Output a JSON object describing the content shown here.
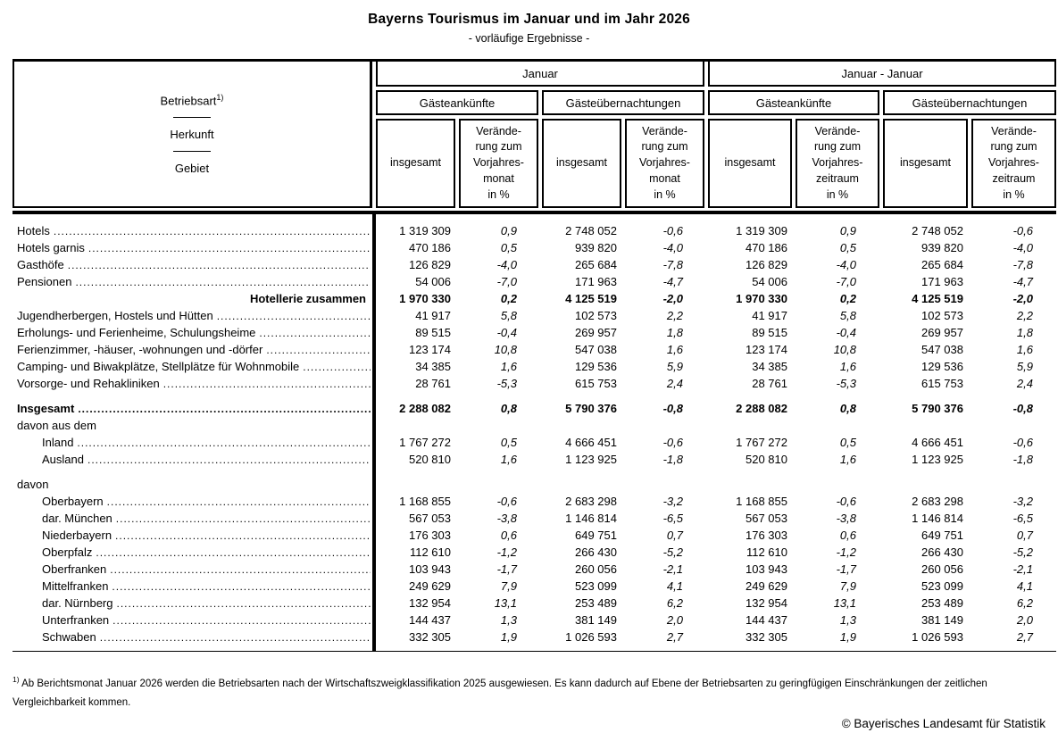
{
  "title": "Bayerns Tourismus im Januar und im Jahr 2026",
  "subtitle": "- vorläufige Ergebnisse -",
  "header": {
    "col_label_top": "Betriebsart",
    "col_label_footnote_marker": "1)",
    "col_label_mid": "Herkunft",
    "col_label_bottom": "Gebiet",
    "groups": [
      "Januar",
      "Januar - Januar"
    ],
    "subgroups": [
      "Gästeankünfte",
      "Gästeübernachtungen",
      "Gästeankünfte",
      "Gästeübernachtungen"
    ],
    "measures": [
      "insgesamt",
      "Verände-\nrung zum\nVorjahres-\nmonat\nin %",
      "insgesamt",
      "Verände-\nrung zum\nVorjahres-\nmonat\nin %",
      "insgesamt",
      "Verände-\nrung zum\nVorjahres-\nzeitraum\nin %",
      "insgesamt",
      "Verände-\nrung zum\nVorjahres-\nzeitraum\nin %"
    ]
  },
  "table": {
    "rows": [
      {
        "label": "Hotels",
        "type": "normal",
        "indent": 0,
        "bold": false,
        "gap_before": false,
        "values": [
          "1 319 309",
          "0,9",
          "2 748 052",
          "-0,6",
          "1 319 309",
          "0,9",
          "2 748 052",
          "-0,6"
        ]
      },
      {
        "label": "Hotels garnis",
        "type": "normal",
        "indent": 0,
        "bold": false,
        "gap_before": false,
        "values": [
          "470 186",
          "0,5",
          "939 820",
          "-4,0",
          "470 186",
          "0,5",
          "939 820",
          "-4,0"
        ]
      },
      {
        "label": "Gasthöfe",
        "type": "normal",
        "indent": 0,
        "bold": false,
        "gap_before": false,
        "values": [
          "126 829",
          "-4,0",
          "265 684",
          "-7,8",
          "126 829",
          "-4,0",
          "265 684",
          "-7,8"
        ]
      },
      {
        "label": "Pensionen",
        "type": "normal",
        "indent": 0,
        "bold": false,
        "gap_before": false,
        "values": [
          "54 006",
          "-7,0",
          "171 963",
          "-4,7",
          "54 006",
          "-7,0",
          "171 963",
          "-4,7"
        ]
      },
      {
        "label": "Hotellerie zusammen",
        "type": "summary",
        "indent": 0,
        "bold": true,
        "gap_before": false,
        "values": [
          "1 970 330",
          "0,2",
          "4 125 519",
          "-2,0",
          "1 970 330",
          "0,2",
          "4 125 519",
          "-2,0"
        ]
      },
      {
        "label": "Jugendherbergen, Hostels und Hütten",
        "type": "normal",
        "indent": 0,
        "bold": false,
        "gap_before": false,
        "values": [
          "41 917",
          "5,8",
          "102 573",
          "2,2",
          "41 917",
          "5,8",
          "102 573",
          "2,2"
        ]
      },
      {
        "label": "Erholungs- und Ferienheime, Schulungsheime",
        "type": "normal",
        "indent": 0,
        "bold": false,
        "gap_before": false,
        "values": [
          "89 515",
          "-0,4",
          "269 957",
          "1,8",
          "89 515",
          "-0,4",
          "269 957",
          "1,8"
        ]
      },
      {
        "label": "Ferienzimmer, -häuser, -wohnungen und -dörfer",
        "type": "normal",
        "indent": 0,
        "bold": false,
        "gap_before": false,
        "values": [
          "123 174",
          "10,8",
          "547 038",
          "1,6",
          "123 174",
          "10,8",
          "547 038",
          "1,6"
        ]
      },
      {
        "label": "Camping- und Biwakplätze, Stellplätze für Wohnmobile",
        "type": "normal",
        "indent": 0,
        "bold": false,
        "gap_before": false,
        "values": [
          "34 385",
          "1,6",
          "129 536",
          "5,9",
          "34 385",
          "1,6",
          "129 536",
          "5,9"
        ]
      },
      {
        "label": "Vorsorge- und Rehakliniken",
        "type": "normal",
        "indent": 0,
        "bold": false,
        "gap_before": false,
        "values": [
          "28 761",
          "-5,3",
          "615 753",
          "2,4",
          "28 761",
          "-5,3",
          "615 753",
          "2,4"
        ]
      },
      {
        "label": "Insgesamt",
        "type": "normal",
        "indent": 0,
        "bold": true,
        "gap_before": true,
        "values": [
          "2 288 082",
          "0,8",
          "5 790 376",
          "-0,8",
          "2 288 082",
          "0,8",
          "5 790 376",
          "-0,8"
        ]
      },
      {
        "label": "davon aus dem",
        "type": "section",
        "indent": 0,
        "bold": false,
        "gap_before": false,
        "values": []
      },
      {
        "label": "Inland",
        "type": "normal",
        "indent": 1,
        "bold": false,
        "gap_before": false,
        "values": [
          "1 767 272",
          "0,5",
          "4 666 451",
          "-0,6",
          "1 767 272",
          "0,5",
          "4 666 451",
          "-0,6"
        ]
      },
      {
        "label": "Ausland",
        "type": "normal",
        "indent": 1,
        "bold": false,
        "gap_before": false,
        "values": [
          "520 810",
          "1,6",
          "1 123 925",
          "-1,8",
          "520 810",
          "1,6",
          "1 123 925",
          "-1,8"
        ]
      },
      {
        "label": "davon",
        "type": "section",
        "indent": 0,
        "bold": false,
        "gap_before": true,
        "values": []
      },
      {
        "label": "Oberbayern",
        "type": "normal",
        "indent": 1,
        "bold": false,
        "gap_before": false,
        "values": [
          "1 168 855",
          "-0,6",
          "2 683 298",
          "-3,2",
          "1 168 855",
          "-0,6",
          "2 683 298",
          "-3,2"
        ]
      },
      {
        "label": "dar. München",
        "type": "normal",
        "indent": 1,
        "bold": false,
        "gap_before": false,
        "values": [
          "567 053",
          "-3,8",
          "1 146 814",
          "-6,5",
          "567 053",
          "-3,8",
          "1 146 814",
          "-6,5"
        ]
      },
      {
        "label": "Niederbayern",
        "type": "normal",
        "indent": 1,
        "bold": false,
        "gap_before": false,
        "values": [
          "176 303",
          "0,6",
          "649 751",
          "0,7",
          "176 303",
          "0,6",
          "649 751",
          "0,7"
        ]
      },
      {
        "label": "Oberpfalz",
        "type": "normal",
        "indent": 1,
        "bold": false,
        "gap_before": false,
        "values": [
          "112 610",
          "-1,2",
          "266 430",
          "-5,2",
          "112 610",
          "-1,2",
          "266 430",
          "-5,2"
        ]
      },
      {
        "label": "Oberfranken",
        "type": "normal",
        "indent": 1,
        "bold": false,
        "gap_before": false,
        "values": [
          "103 943",
          "-1,7",
          "260 056",
          "-2,1",
          "103 943",
          "-1,7",
          "260 056",
          "-2,1"
        ]
      },
      {
        "label": "Mittelfranken",
        "type": "normal",
        "indent": 1,
        "bold": false,
        "gap_before": false,
        "values": [
          "249 629",
          "7,9",
          "523 099",
          "4,1",
          "249 629",
          "7,9",
          "523 099",
          "4,1"
        ]
      },
      {
        "label": "dar. Nürnberg",
        "type": "normal",
        "indent": 1,
        "bold": false,
        "gap_before": false,
        "values": [
          "132 954",
          "13,1",
          "253 489",
          "6,2",
          "132 954",
          "13,1",
          "253 489",
          "6,2"
        ]
      },
      {
        "label": "Unterfranken",
        "type": "normal",
        "indent": 1,
        "bold": false,
        "gap_before": false,
        "values": [
          "144 437",
          "1,3",
          "381 149",
          "2,0",
          "144 437",
          "1,3",
          "381 149",
          "2,0"
        ]
      },
      {
        "label": "Schwaben",
        "type": "normal",
        "indent": 1,
        "bold": false,
        "gap_before": false,
        "values": [
          "332 305",
          "1,9",
          "1 026 593",
          "2,7",
          "332 305",
          "1,9",
          "1 026 593",
          "2,7"
        ]
      }
    ]
  },
  "footnote": {
    "marker": "1)",
    "text": "Ab Berichtsmonat Januar 2026 werden die Betriebsarten nach der Wirtschaftszweigklassifikation 2025 ausgewiesen. Es kann dadurch auf Ebene der Betriebsarten zu geringfügigen Einschränkungen der zeitlichen Vergleichbarkeit kommen."
  },
  "copyright": "© Bayerisches Landesamt für Statistik"
}
